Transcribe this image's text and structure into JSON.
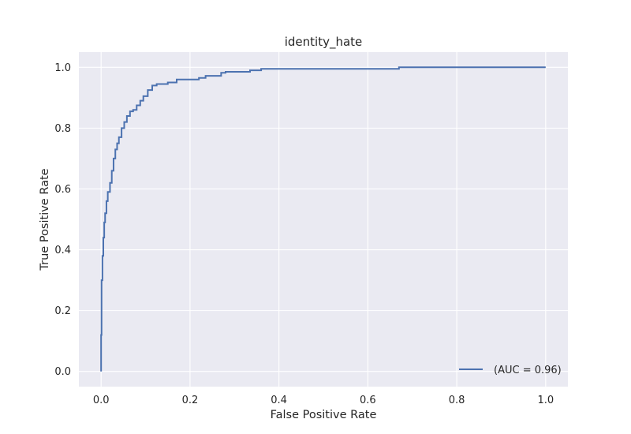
{
  "chart_data": {
    "type": "line",
    "title": "identity_hate",
    "xlabel": "False Positive Rate",
    "ylabel": "True Positive Rate",
    "xlim": [
      -0.05,
      1.05
    ],
    "ylim": [
      -0.05,
      1.05
    ],
    "xticks": [
      0.0,
      0.2,
      0.4,
      0.6,
      0.8,
      1.0
    ],
    "xtick_labels": [
      "0.0",
      "0.2",
      "0.4",
      "0.6",
      "0.8",
      "1.0"
    ],
    "yticks": [
      0.0,
      0.2,
      0.4,
      0.6,
      0.8,
      1.0
    ],
    "ytick_labels": [
      "0.0",
      "0.2",
      "0.4",
      "0.6",
      "0.8",
      "1.0"
    ],
    "grid": true,
    "legend_position": "lower-right",
    "series": [
      {
        "name": "(AUC = 0.96)",
        "color": "#4c72b0",
        "x": [
          0.0,
          0.0,
          0.001,
          0.001,
          0.003,
          0.003,
          0.005,
          0.005,
          0.007,
          0.007,
          0.009,
          0.009,
          0.012,
          0.012,
          0.015,
          0.015,
          0.02,
          0.02,
          0.024,
          0.024,
          0.028,
          0.028,
          0.032,
          0.032,
          0.036,
          0.036,
          0.04,
          0.04,
          0.046,
          0.046,
          0.052,
          0.052,
          0.058,
          0.058,
          0.065,
          0.065,
          0.072,
          0.072,
          0.08,
          0.08,
          0.088,
          0.088,
          0.095,
          0.095,
          0.105,
          0.105,
          0.115,
          0.115,
          0.125,
          0.125,
          0.15,
          0.15,
          0.17,
          0.17,
          0.22,
          0.22,
          0.235,
          0.235,
          0.27,
          0.27,
          0.28,
          0.28,
          0.335,
          0.335,
          0.36,
          0.36,
          0.67,
          0.67,
          1.0
        ],
        "y": [
          0.0,
          0.12,
          0.12,
          0.3,
          0.3,
          0.38,
          0.38,
          0.44,
          0.44,
          0.49,
          0.49,
          0.52,
          0.52,
          0.56,
          0.56,
          0.59,
          0.59,
          0.62,
          0.62,
          0.66,
          0.66,
          0.7,
          0.7,
          0.73,
          0.73,
          0.75,
          0.75,
          0.77,
          0.77,
          0.8,
          0.8,
          0.82,
          0.82,
          0.84,
          0.84,
          0.855,
          0.855,
          0.86,
          0.86,
          0.875,
          0.875,
          0.89,
          0.89,
          0.905,
          0.905,
          0.925,
          0.925,
          0.94,
          0.94,
          0.945,
          0.945,
          0.95,
          0.95,
          0.96,
          0.96,
          0.965,
          0.965,
          0.972,
          0.972,
          0.982,
          0.982,
          0.985,
          0.985,
          0.99,
          0.99,
          0.995,
          0.995,
          1.0,
          1.0
        ]
      }
    ]
  }
}
